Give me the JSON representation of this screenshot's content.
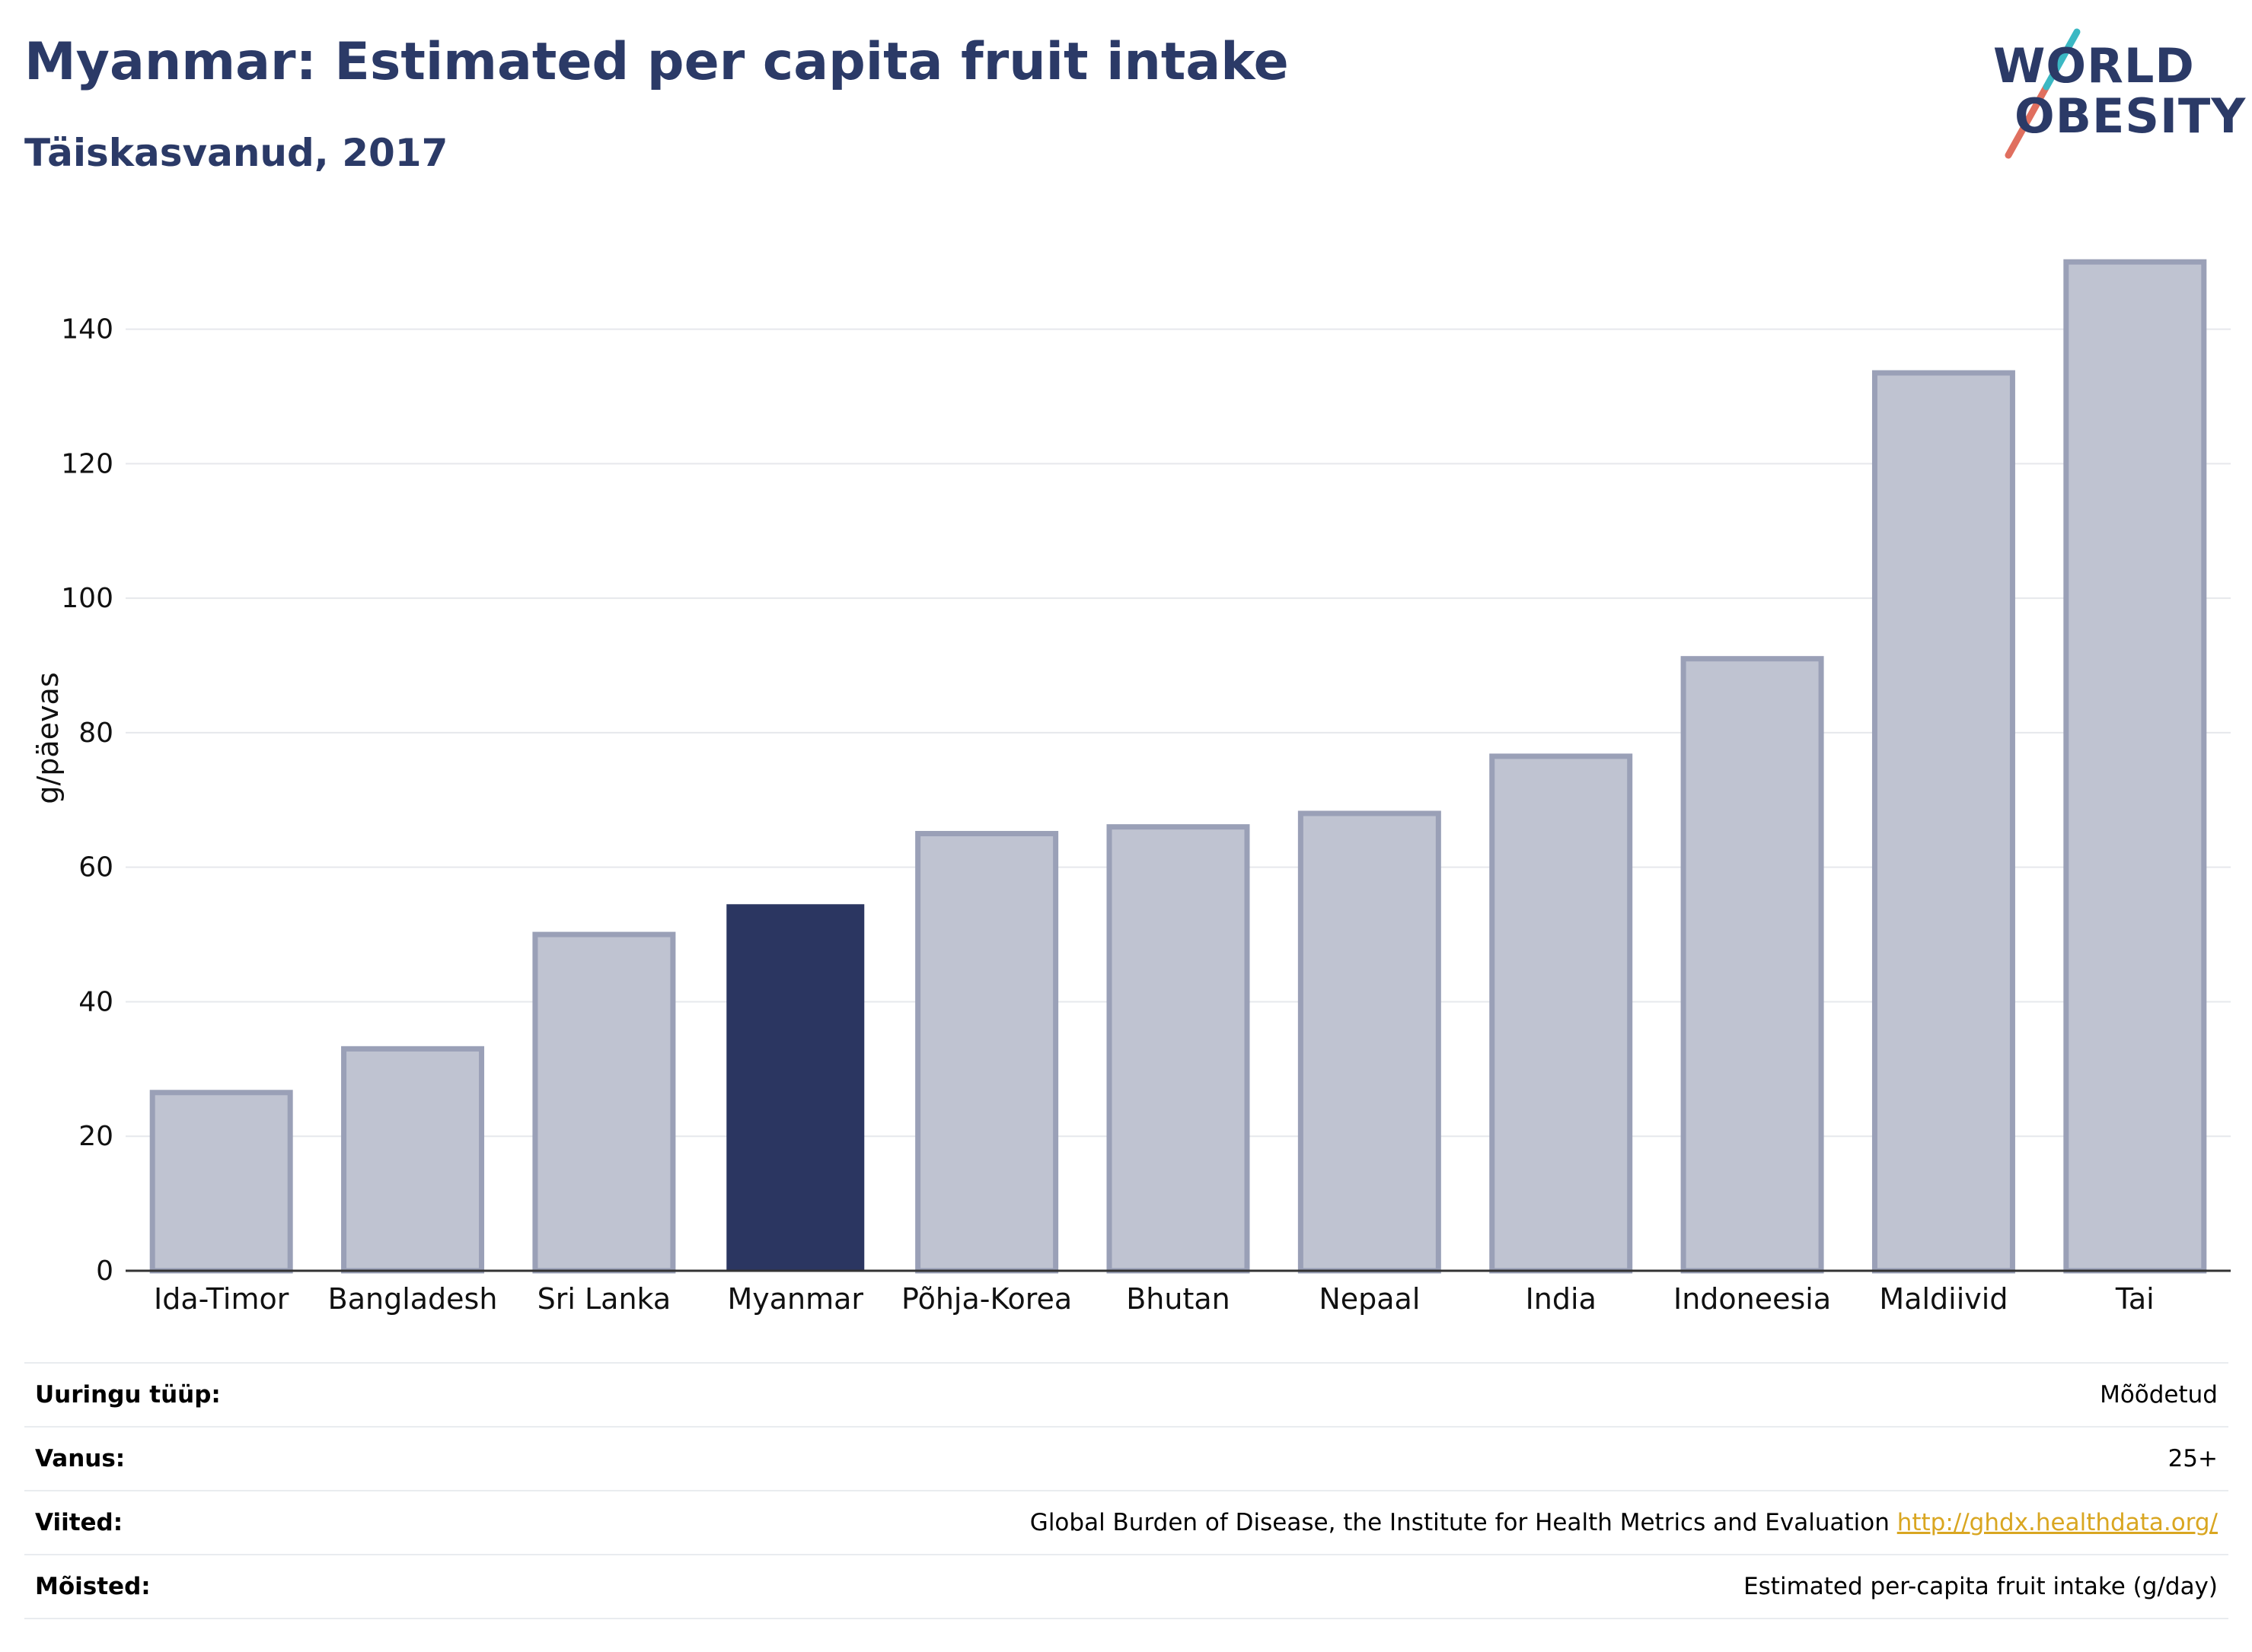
{
  "header": {
    "title": "Myanmar: Estimated per capita fruit intake",
    "subtitle": "Täiskasvanud, 2017"
  },
  "logo": {
    "line1": "WORLD",
    "line2": "OBESITY"
  },
  "chart_data": {
    "type": "bar",
    "title": "Myanmar: Estimated per capita fruit intake",
    "subtitle": "Täiskasvanud, 2017",
    "ylabel": "g/päevas",
    "xlabel": "",
    "categories": [
      "Ida-Timor",
      "Bangladesh",
      "Sri Lanka",
      "Myanmar",
      "Põhja-Korea",
      "Bhutan",
      "Nepaal",
      "India",
      "Indoneesia",
      "Maldiivid",
      "Tai"
    ],
    "values": [
      26.5,
      33,
      50,
      54.5,
      65,
      66,
      68,
      76.5,
      91,
      133.5,
      150
    ],
    "highlight": "Myanmar",
    "ylim": [
      0,
      155
    ],
    "yticks": [
      0,
      20,
      40,
      60,
      80,
      100,
      120,
      140
    ],
    "grid": true,
    "colors": {
      "bar": "#bfc3d1",
      "bar_border": "#9aa0b7",
      "highlight": "#2b3661",
      "axis": "#333333",
      "grid": "#e6e8ec"
    }
  },
  "info": [
    {
      "key": "Uuringu tüüp:",
      "value": "Mõõdetud"
    },
    {
      "key": "Vanus:",
      "value": "25+"
    },
    {
      "key": "Viited:",
      "value": "Global Burden of Disease, the Institute for Health Metrics and Evaluation",
      "link": "http://ghdx.healthdata.org/"
    },
    {
      "key": "Mõisted:",
      "value": "Estimated per-capita fruit intake (g/day)"
    }
  ]
}
